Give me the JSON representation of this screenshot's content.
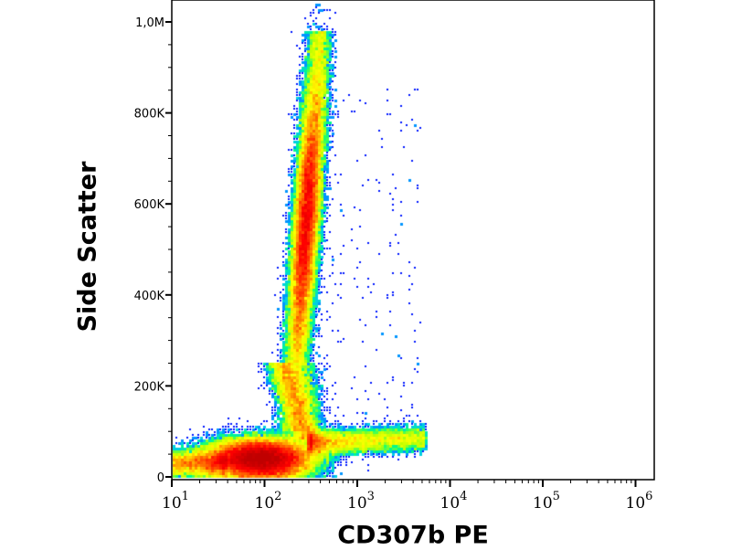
{
  "chart_data": {
    "type": "heatmap",
    "subtype": "flow-cytometry-density-dot-plot",
    "xlabel": "CD307b PE",
    "ylabel": "Side Scatter",
    "x_scale": "log",
    "xlim": [
      10,
      1000000
    ],
    "ylim": [
      0,
      1050000
    ],
    "x_ticks": [
      {
        "value": 10,
        "base": "10",
        "exp": "1"
      },
      {
        "value": 100,
        "base": "10",
        "exp": "2"
      },
      {
        "value": 1000,
        "base": "10",
        "exp": "3"
      },
      {
        "value": 10000,
        "base": "10",
        "exp": "4"
      },
      {
        "value": 100000,
        "base": "10",
        "exp": "5"
      },
      {
        "value": 1000000,
        "base": "10",
        "exp": "6"
      }
    ],
    "y_ticks": [
      {
        "value": 0,
        "label": "0"
      },
      {
        "value": 200000,
        "label": "200K"
      },
      {
        "value": 400000,
        "label": "400K"
      },
      {
        "value": 600000,
        "label": "600K"
      },
      {
        "value": 800000,
        "label": "800K"
      },
      {
        "value": 1000000,
        "label": "1,0M"
      }
    ],
    "colormap": [
      "#00008f",
      "#0000ff",
      "#00bfff",
      "#00ff80",
      "#c0ff00",
      "#ffff00",
      "#ff8000",
      "#ff0000",
      "#c00000"
    ],
    "grid": false,
    "populations": [
      {
        "name_hidden": "low-CD307b cluster",
        "x_center": 90,
        "y_center": 40000,
        "x_spread_decades": 0.28,
        "y_spread": 22000,
        "weight": 0.38
      },
      {
        "name_hidden": "vertical high-SSC streak",
        "x_center": 250,
        "y_range": [
          100000,
          980000
        ],
        "y_center": 560000,
        "x_spread_decades": 0.07,
        "weight": 0.42
      },
      {
        "name_hidden": "positive tail",
        "x_range": [
          300,
          5500
        ],
        "y_center": 75000,
        "y_spread": 14000,
        "weight": 0.07
      },
      {
        "name_hidden": "axis-edge events",
        "x_range": [
          10,
          40
        ],
        "y_center": 30000,
        "y_spread": 15000,
        "weight": 0.05
      }
    ]
  }
}
